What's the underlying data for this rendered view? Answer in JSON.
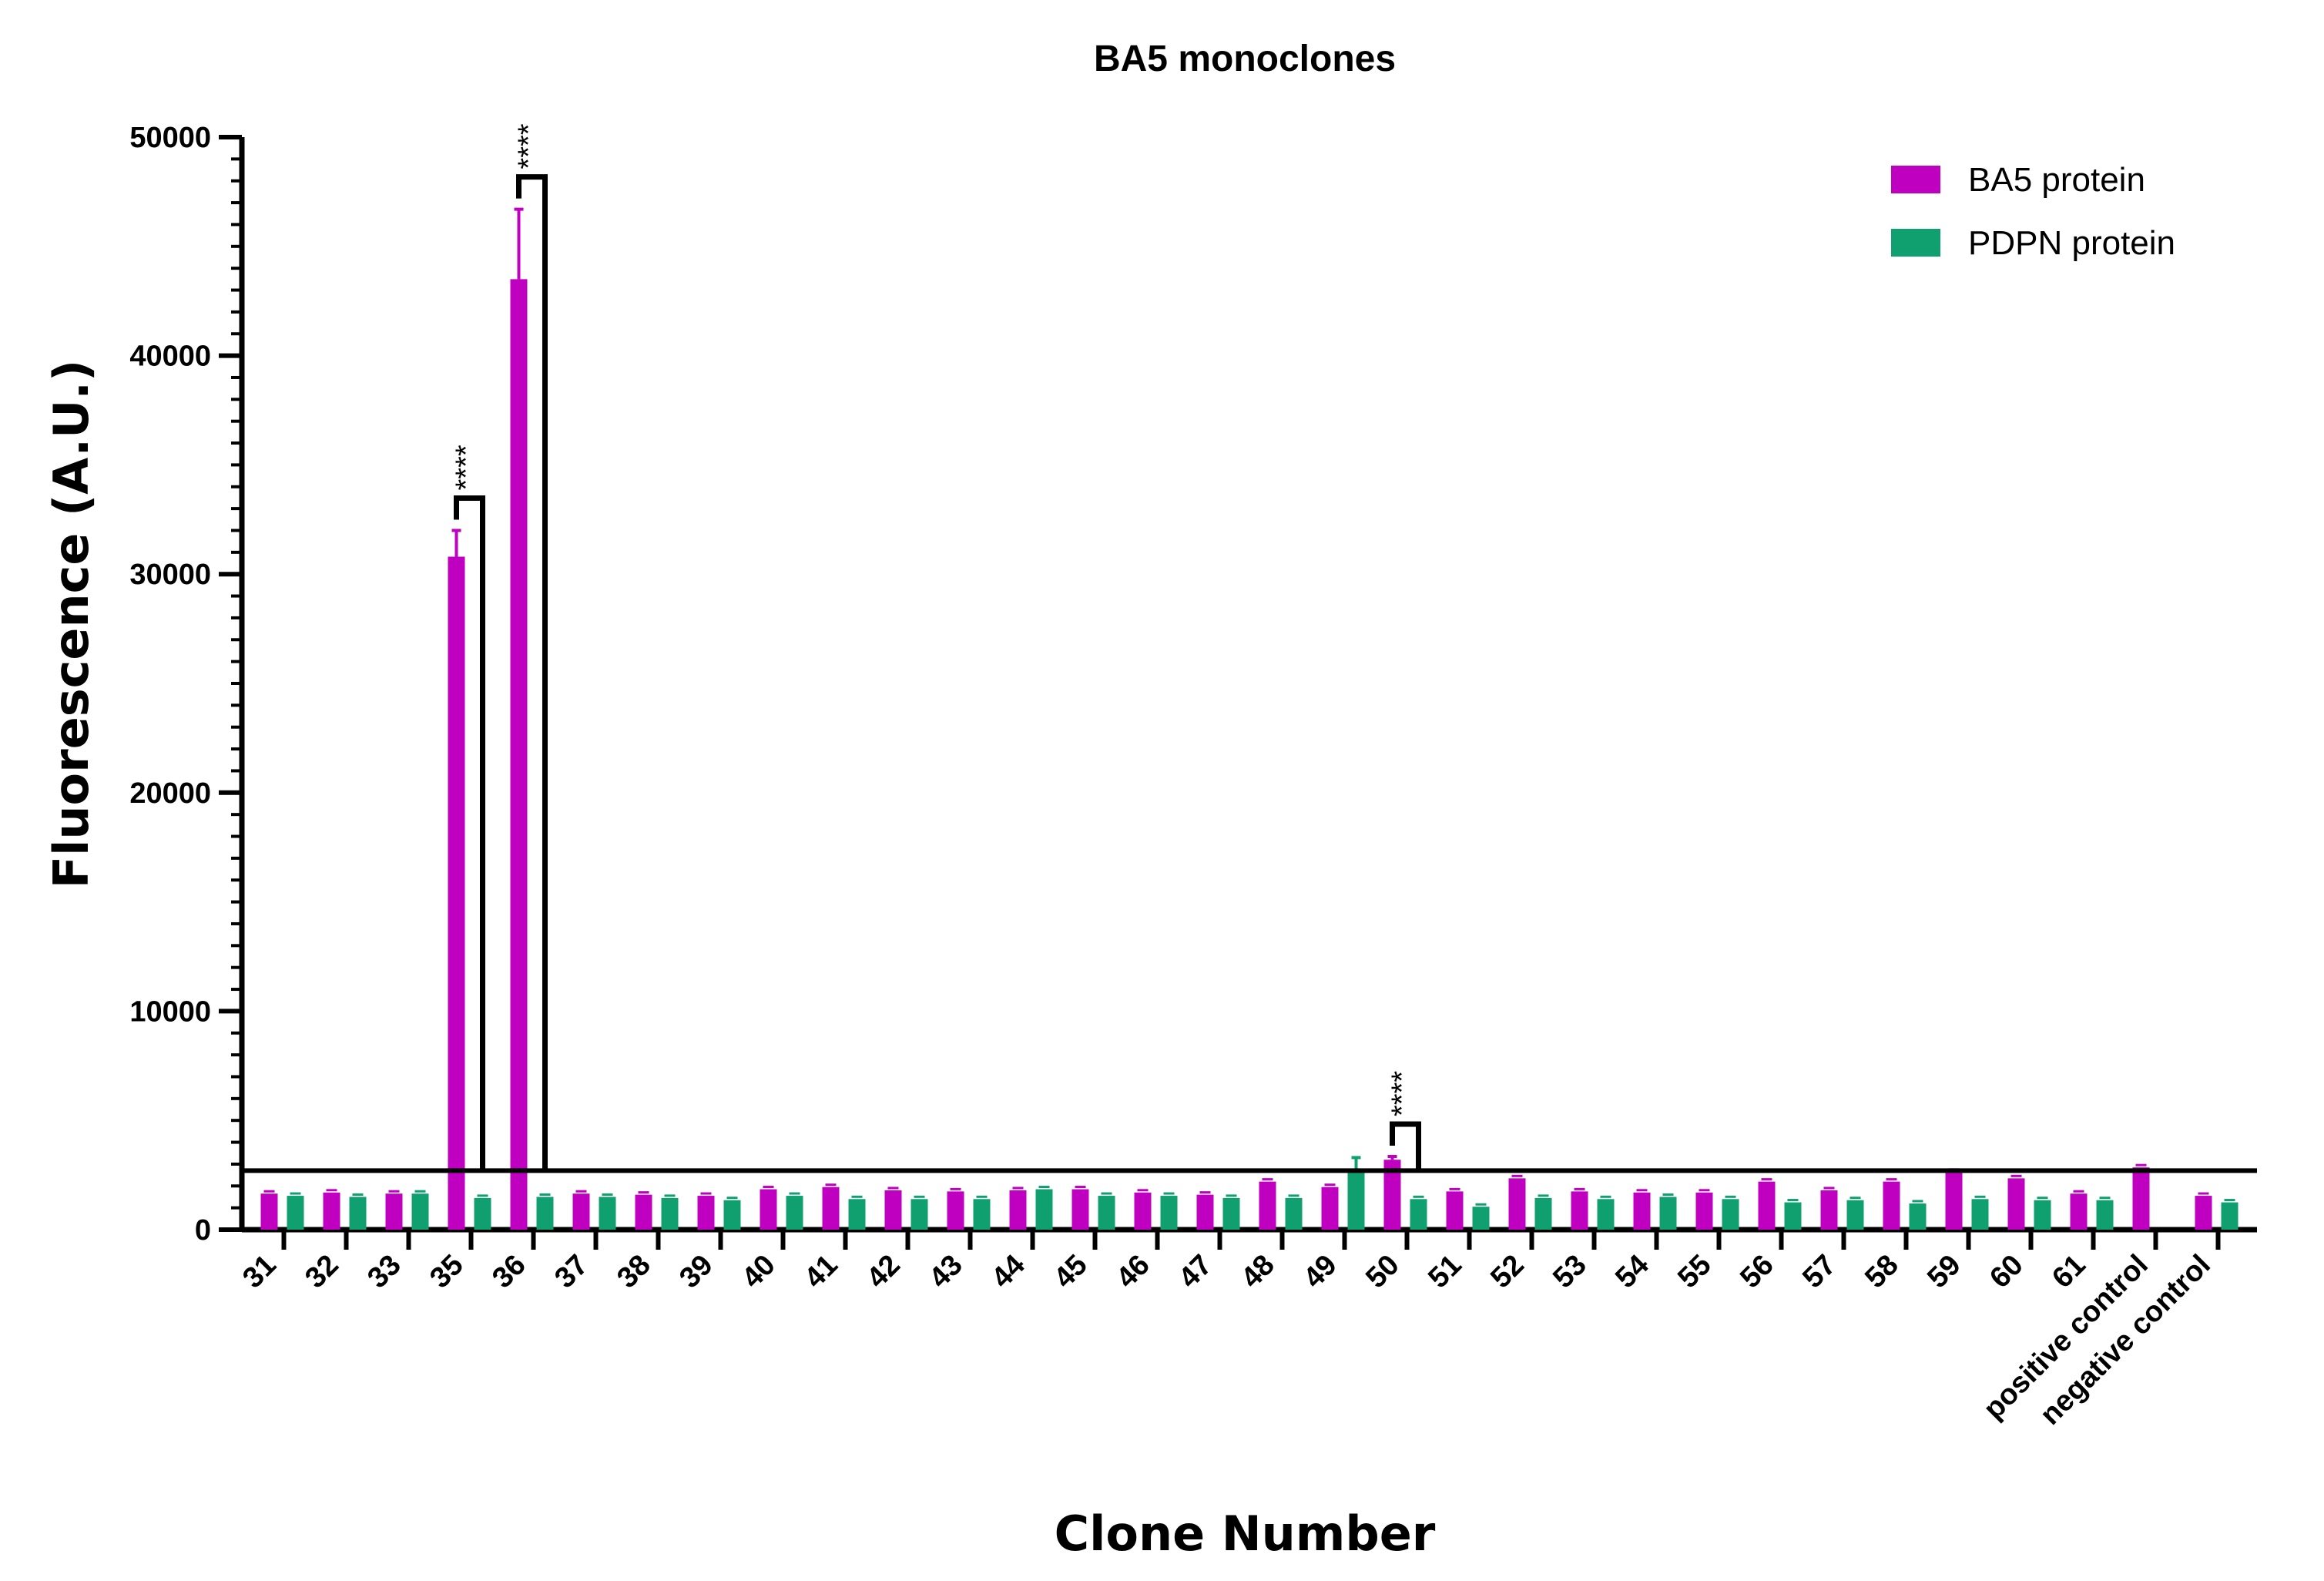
{
  "chart_data": {
    "type": "bar",
    "title": "BA5 monoclones",
    "xlabel": "Clone Number",
    "ylabel": "Fluorescence (A.U.)",
    "ylim": [
      0,
      50000
    ],
    "yticks": [
      0,
      10000,
      20000,
      30000,
      40000,
      50000
    ],
    "categories": [
      "31",
      "32",
      "33",
      "35",
      "36",
      "37",
      "38",
      "39",
      "40",
      "41",
      "42",
      "43",
      "44",
      "45",
      "46",
      "47",
      "48",
      "49",
      "50",
      "51",
      "52",
      "53",
      "54",
      "55",
      "56",
      "57",
      "58",
      "59",
      "60",
      "61",
      "positive control",
      "negative control"
    ],
    "series": [
      {
        "name": "BA5 protein",
        "color": "#c000c0",
        "values": [
          1650,
          1700,
          1650,
          30800,
          43500,
          1650,
          1600,
          1550,
          1850,
          1950,
          1800,
          1750,
          1800,
          1850,
          1700,
          1600,
          2200,
          1950,
          3200,
          1750,
          2350,
          1750,
          1700,
          1700,
          2200,
          1800,
          2200,
          2650,
          2350,
          1650,
          2850,
          1550
        ],
        "errors": [
          0,
          0,
          0,
          1200,
          3200,
          0,
          0,
          0,
          0,
          0,
          0,
          0,
          0,
          0,
          0,
          0,
          0,
          0,
          150,
          0,
          0,
          0,
          0,
          0,
          0,
          0,
          0,
          0,
          0,
          0,
          0,
          0
        ]
      },
      {
        "name": "PDPN protein",
        "color": "#10a070",
        "values": [
          1550,
          1500,
          1650,
          1450,
          1500,
          1500,
          1450,
          1350,
          1550,
          1400,
          1400,
          1400,
          1850,
          1550,
          1550,
          1450,
          1450,
          2800,
          1400,
          1050,
          1450,
          1400,
          1500,
          1400,
          1250,
          1350,
          1200,
          1400,
          1350,
          1350,
          null,
          1250
        ],
        "errors": [
          0,
          0,
          0,
          0,
          0,
          0,
          0,
          0,
          0,
          0,
          0,
          0,
          0,
          0,
          0,
          0,
          0,
          500,
          0,
          0,
          0,
          0,
          0,
          0,
          0,
          0,
          0,
          0,
          0,
          0,
          0,
          0
        ]
      }
    ],
    "threshold": 2700,
    "significance": [
      {
        "category": "35",
        "label": "****"
      },
      {
        "category": "36",
        "label": "****"
      },
      {
        "category": "50",
        "label": "****"
      }
    ],
    "legend_position": "top-right",
    "grid": false
  }
}
